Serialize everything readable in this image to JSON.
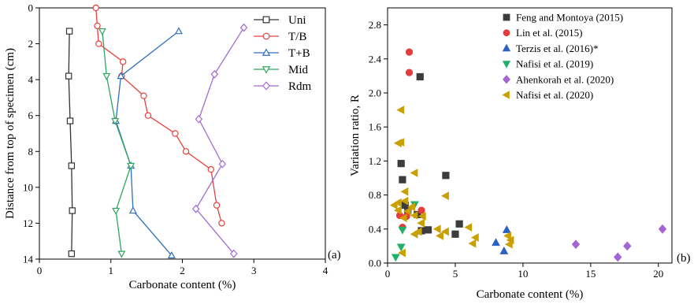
{
  "chart_data": [
    {
      "type": "line",
      "panel_label": "(a)",
      "xlabel": "Carbonate content (%)",
      "ylabel": "Distance from top of specimen (cm)",
      "xlim": [
        0,
        4
      ],
      "ylim": [
        0,
        14
      ],
      "y_inverted": true,
      "x_ticks": [
        0,
        1,
        2,
        3,
        4
      ],
      "y_ticks": [
        0,
        2,
        4,
        6,
        8,
        10,
        12,
        14
      ],
      "grid": false,
      "legend_position": "top-right",
      "series": [
        {
          "name": "Uni",
          "color": "#333333",
          "marker": "square",
          "points": [
            [
              0.42,
              1.3
            ],
            [
              0.41,
              3.8
            ],
            [
              0.43,
              6.3
            ],
            [
              0.45,
              8.8
            ],
            [
              0.46,
              11.3
            ],
            [
              0.45,
              13.7
            ]
          ]
        },
        {
          "name": "T/B",
          "color": "#e8413c",
          "marker": "circle",
          "points": [
            [
              0.79,
              0.0
            ],
            [
              0.81,
              1.0
            ],
            [
              0.83,
              2.0
            ],
            [
              1.17,
              3.0
            ],
            [
              1.15,
              3.8
            ],
            [
              1.46,
              4.9
            ],
            [
              1.52,
              6.0
            ],
            [
              1.9,
              7.0
            ],
            [
              2.05,
              8.0
            ],
            [
              2.4,
              9.0
            ],
            [
              2.48,
              11.0
            ],
            [
              2.55,
              12.0
            ]
          ]
        },
        {
          "name": "T+B",
          "color": "#2f6fc0",
          "marker": "triangle-up",
          "points": [
            [
              1.95,
              1.3
            ],
            [
              1.14,
              3.8
            ],
            [
              1.07,
              6.3
            ],
            [
              1.28,
              8.8
            ],
            [
              1.31,
              11.3
            ],
            [
              1.85,
              13.8
            ]
          ]
        },
        {
          "name": "Mid",
          "color": "#2ca55f",
          "marker": "triangle-down",
          "points": [
            [
              0.88,
              1.3
            ],
            [
              0.94,
              3.8
            ],
            [
              1.06,
              6.3
            ],
            [
              1.28,
              8.8
            ],
            [
              1.07,
              11.3
            ],
            [
              1.15,
              13.7
            ]
          ]
        },
        {
          "name": "Rdm",
          "color": "#a36bd0",
          "marker": "diamond",
          "points": [
            [
              2.86,
              1.1
            ],
            [
              2.45,
              3.7
            ],
            [
              2.23,
              6.2
            ],
            [
              2.56,
              8.7
            ],
            [
              2.19,
              11.2
            ],
            [
              2.72,
              13.7
            ]
          ]
        }
      ]
    },
    {
      "type": "scatter",
      "panel_label": "(b)",
      "xlabel": "Carbonate content (%)",
      "ylabel": "Variation ratio, R",
      "xlim": [
        0,
        21
      ],
      "ylim": [
        0,
        3.0
      ],
      "x_ticks": [
        0,
        5,
        10,
        15,
        20
      ],
      "y_ticks": [
        0.0,
        0.4,
        0.8,
        1.2,
        1.6,
        2.0,
        2.4,
        2.8
      ],
      "grid": false,
      "legend_position": "top-right",
      "series": [
        {
          "name": "Feng and Montoya (2015)",
          "color": "#3c3c3c",
          "marker": "square",
          "points": [
            [
              2.4,
              2.19
            ],
            [
              4.3,
              1.03
            ],
            [
              1.0,
              1.17
            ],
            [
              1.1,
              0.98
            ],
            [
              1.3,
              0.68
            ],
            [
              2.2,
              0.57
            ],
            [
              5.3,
              0.46
            ],
            [
              1.5,
              0.62
            ],
            [
              2.5,
              0.38
            ],
            [
              3.0,
              0.39
            ],
            [
              5.0,
              0.34
            ]
          ]
        },
        {
          "name": "Lin et al. (2015)",
          "color": "#e53b3b",
          "marker": "circle",
          "points": [
            [
              1.6,
              2.48
            ],
            [
              1.6,
              2.24
            ],
            [
              0.9,
              0.56
            ],
            [
              1.4,
              0.55
            ],
            [
              2.5,
              0.62
            ],
            [
              1.1,
              0.42
            ]
          ]
        },
        {
          "name": "Terzis et al. (2016)*",
          "color": "#2a62c4",
          "marker": "triangle-up",
          "points": [
            [
              8.8,
              0.39
            ],
            [
              8.0,
              0.24
            ],
            [
              8.6,
              0.14
            ]
          ]
        },
        {
          "name": "Nafisi et al. (2019)",
          "color": "#22b06a",
          "marker": "triangle-down",
          "points": [
            [
              2.0,
              0.69
            ],
            [
              1.1,
              0.39
            ],
            [
              0.6,
              0.07
            ],
            [
              1.0,
              0.19
            ]
          ]
        },
        {
          "name": "Ahenkorah et al. (2020)",
          "color": "#a465d4",
          "marker": "diamond",
          "points": [
            [
              13.9,
              0.22
            ],
            [
              17.7,
              0.2
            ],
            [
              17.0,
              0.07
            ],
            [
              20.3,
              0.4
            ]
          ]
        },
        {
          "name": "Nafisi et al. (2020)",
          "color": "#c9a000",
          "marker": "triangle-left",
          "points": [
            [
              1.0,
              1.8
            ],
            [
              0.8,
              1.41
            ],
            [
              1.0,
              1.42
            ],
            [
              2.0,
              1.06
            ],
            [
              1.3,
              0.84
            ],
            [
              4.3,
              0.79
            ],
            [
              0.5,
              0.68
            ],
            [
              0.8,
              0.71
            ],
            [
              1.3,
              0.73
            ],
            [
              1.8,
              0.66
            ],
            [
              0.8,
              0.62
            ],
            [
              1.5,
              0.61
            ],
            [
              2.0,
              0.56
            ],
            [
              2.6,
              0.55
            ],
            [
              1.2,
              0.53
            ],
            [
              2.5,
              0.47
            ],
            [
              6.0,
              0.42
            ],
            [
              2.3,
              0.37
            ],
            [
              3.7,
              0.4
            ],
            [
              4.3,
              0.37
            ],
            [
              2.0,
              0.34
            ],
            [
              3.9,
              0.32
            ],
            [
              6.5,
              0.3
            ],
            [
              8.9,
              0.32
            ],
            [
              9.1,
              0.27
            ],
            [
              6.3,
              0.23
            ],
            [
              1.1,
              0.12
            ],
            [
              9.0,
              0.22
            ]
          ]
        }
      ]
    }
  ]
}
